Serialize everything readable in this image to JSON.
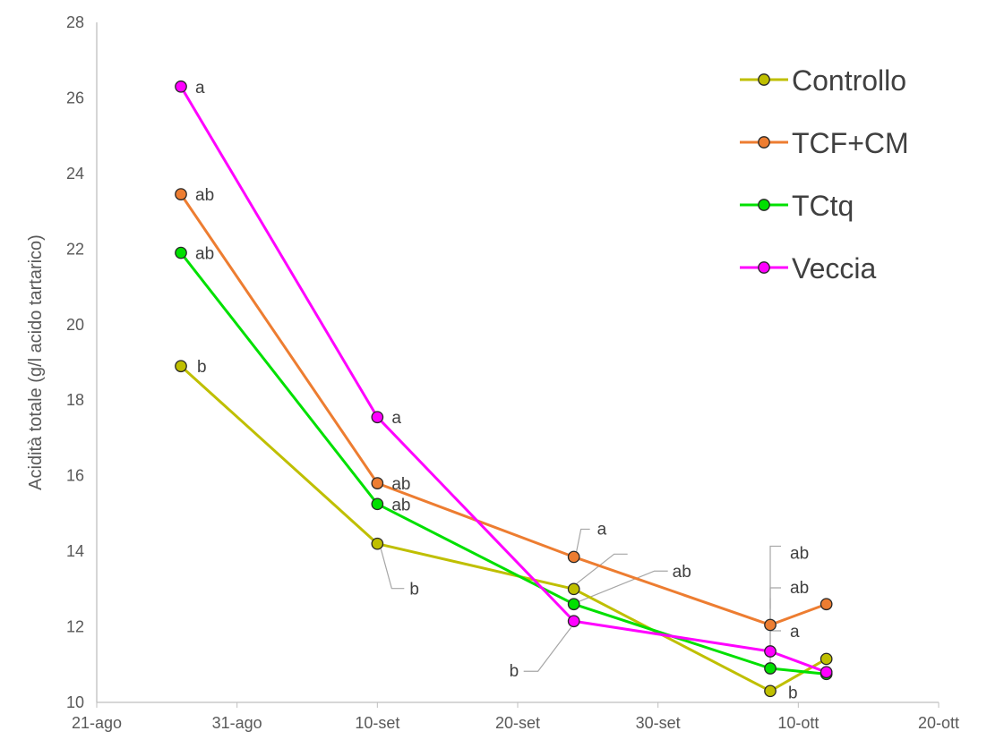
{
  "chart_data": {
    "type": "line",
    "title": "",
    "xlabel": "",
    "ylabel": "Acidità totale (g/l acido tartarico)",
    "ylim": [
      10,
      28
    ],
    "yticks": [
      10,
      12,
      14,
      16,
      18,
      20,
      22,
      24,
      26,
      28
    ],
    "xlim": [
      "2021-08-21",
      "2021-10-20"
    ],
    "xtick_labels": [
      "21-ago",
      "31-ago",
      "10-set",
      "20-set",
      "30-set",
      "10-ott",
      "20-ott"
    ],
    "grid": false,
    "legend_position": "top-right",
    "x": [
      "2021-08-27",
      "2021-09-10",
      "2021-09-24",
      "2021-10-08",
      "2021-10-12"
    ],
    "series": [
      {
        "name": "Controllo",
        "color": "#bfbf00",
        "values": [
          18.9,
          14.2,
          13.0,
          10.3,
          11.15
        ],
        "labels": [
          "b",
          "b",
          "",
          "b",
          ""
        ]
      },
      {
        "name": "TCF+CM",
        "color": "#ed7d31",
        "values": [
          23.45,
          15.8,
          13.85,
          12.05,
          12.6
        ],
        "labels": [
          "ab",
          "ab",
          "a",
          "ab",
          ""
        ]
      },
      {
        "name": "TCtq",
        "color": "#00e000",
        "values": [
          21.9,
          15.25,
          12.6,
          10.9,
          10.75
        ],
        "labels": [
          "ab",
          "ab",
          "ab",
          "ab",
          ""
        ]
      },
      {
        "name": "Veccia",
        "color": "#ff00ff",
        "values": [
          26.3,
          17.55,
          12.15,
          11.35,
          10.8
        ],
        "labels": [
          "a",
          "a",
          "b",
          "a",
          ""
        ]
      }
    ]
  }
}
